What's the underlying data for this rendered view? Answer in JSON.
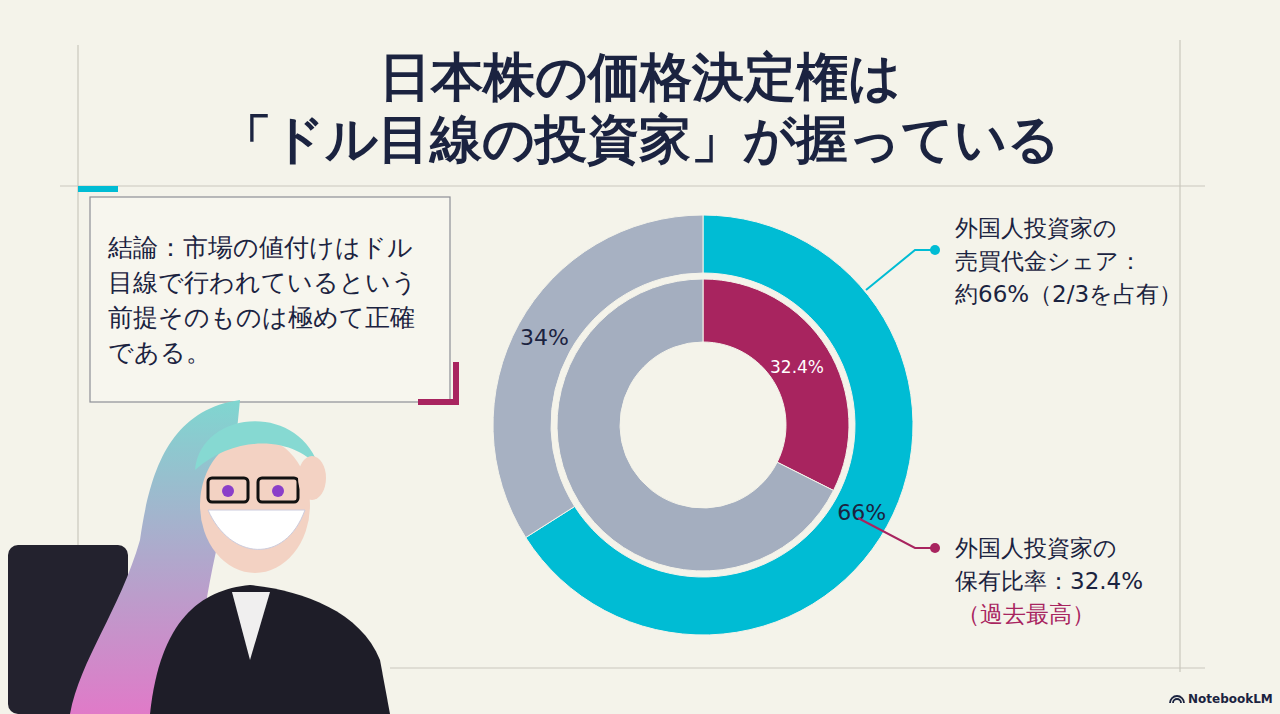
{
  "header": {
    "title_lines": [
      "日本株の価格決定権は",
      "「ドル目線の投資家」が握っている"
    ]
  },
  "conclusion": {
    "lines": [
      "結論：市場の値付けはドル",
      "目線で行われているという",
      "前提そのものは極めて正確",
      "である。"
    ]
  },
  "chart_data": {
    "type": "pie",
    "data_labels": true,
    "series": [
      {
        "values": [
          66,
          34
        ],
        "value_labels": [
          "66%",
          "34%"
        ],
        "colors": [
          "#00bcd4",
          "#a7b1c2"
        ],
        "annotation": [
          "外国人投資家の",
          "売買代金シェア：",
          "約66%（2/3を占有）"
        ]
      },
      {
        "values": [
          32.4,
          67.6
        ],
        "value_labels": [
          "32.4%",
          null
        ],
        "colors": [
          "#a8245f",
          "#a4aebf"
        ],
        "annotation": [
          "外国人投資家の",
          "保有比率：32.4%",
          "（過去最高）"
        ]
      }
    ]
  },
  "footer": {
    "brand": "NotebookLM"
  }
}
